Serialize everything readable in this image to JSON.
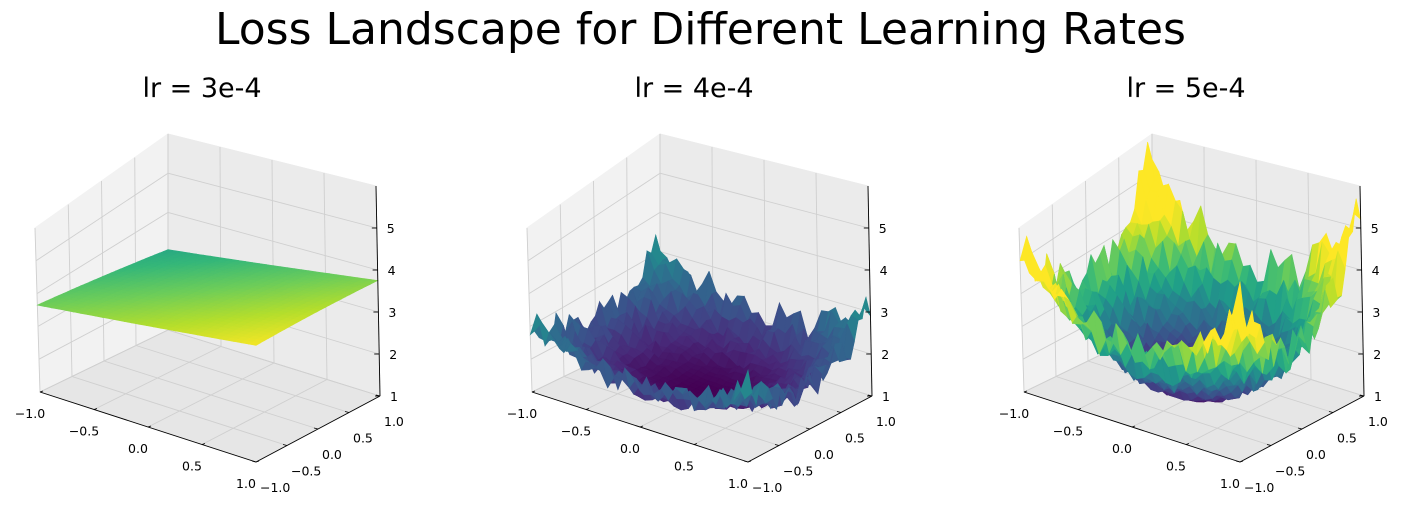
{
  "title": "Loss Landscape for Different Learning Rates",
  "colormap": "viridis",
  "chart_data": [
    {
      "type": "surface3d",
      "title": "lr = 3e-4",
      "x_range": [
        -1.0,
        1.0
      ],
      "y_range": [
        -1.0,
        1.0
      ],
      "z_range": [
        1,
        6
      ],
      "x_ticks": [
        "−1.0",
        "−0.5",
        "0.0",
        "0.5",
        "1.0"
      ],
      "y_ticks": [
        "−1.0",
        "−0.5",
        "0.0",
        "0.5",
        "1.0"
      ],
      "z_ticks": [
        "1",
        "2",
        "3",
        "4",
        "5"
      ],
      "surface": {
        "base": 3.7,
        "quad_coeff": 0.0,
        "tilt_x": 0.35,
        "tilt_y": -0.3,
        "noise": 0.0,
        "color_min": 1.0,
        "color_max": 4.4
      }
    },
    {
      "type": "surface3d",
      "title": "lr = 4e-4",
      "x_range": [
        -1.0,
        1.0
      ],
      "y_range": [
        -1.0,
        1.0
      ],
      "z_range": [
        1,
        6
      ],
      "x_ticks": [
        "−1.0",
        "−0.5",
        "0.0",
        "0.5",
        "1.0"
      ],
      "y_ticks": [
        "−1.0",
        "−0.5",
        "0.0",
        "0.5",
        "1.0"
      ],
      "z_ticks": [
        "1",
        "2",
        "3",
        "4",
        "5"
      ],
      "surface": {
        "base": 1.1,
        "quad_coeff": 2.1,
        "tilt_x": 0.0,
        "tilt_y": 0.0,
        "noise": 0.45,
        "color_min": 1.1,
        "color_max": 5.3
      }
    },
    {
      "type": "surface3d",
      "title": "lr = 5e-4",
      "x_range": [
        -1.0,
        1.0
      ],
      "y_range": [
        -1.0,
        1.0
      ],
      "z_range": [
        1,
        6
      ],
      "x_ticks": [
        "−1.0",
        "−0.5",
        "0.0",
        "0.5",
        "1.0"
      ],
      "y_ticks": [
        "−1.0",
        "−0.5",
        "0.0",
        "0.5",
        "1.0"
      ],
      "z_ticks": [
        "1",
        "2",
        "3",
        "4",
        "5"
      ],
      "surface": {
        "base": 1.0,
        "quad_coeff": 4.6,
        "tilt_x": 0.0,
        "tilt_y": 0.0,
        "noise": 0.6,
        "color_min": 1.0,
        "color_max": 4.2
      }
    }
  ]
}
